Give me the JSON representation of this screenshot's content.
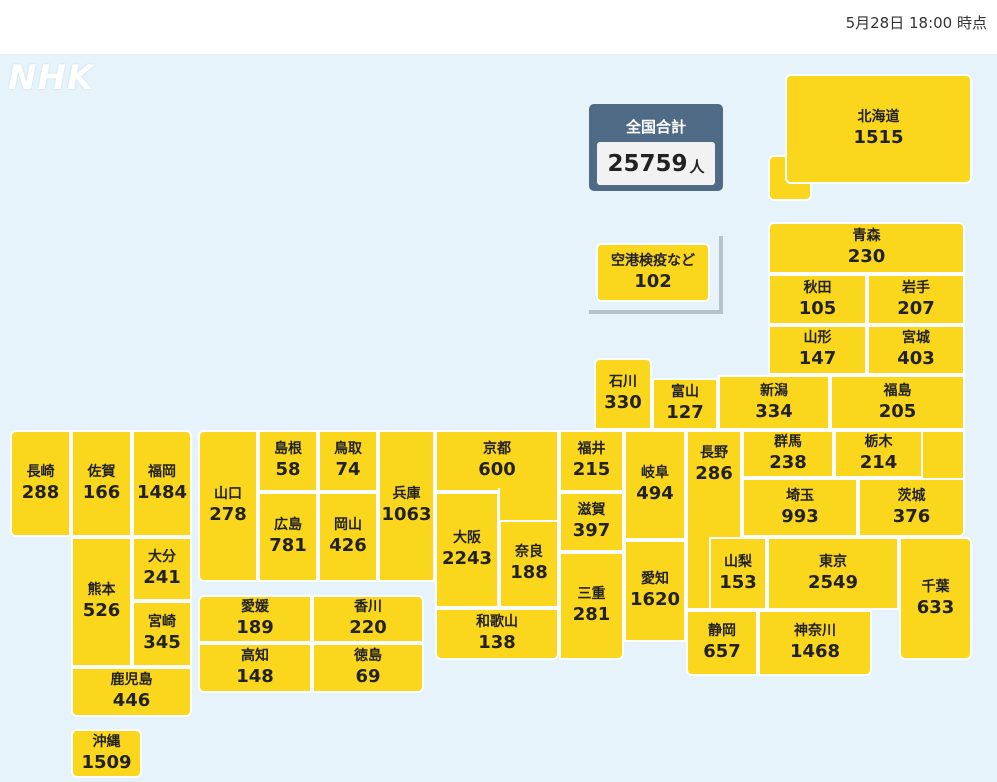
{
  "header": {
    "timestamp": "5月28日 18:00 時点"
  },
  "logo": {
    "text": "NHK"
  },
  "national": {
    "title": "全国合計",
    "count": "25759",
    "unit": "人"
  },
  "airport": {
    "name": "空港検疫など",
    "count": "102"
  },
  "colors": {
    "tile": "#fad61d",
    "background": "#e6f3fb",
    "total_panel": "#4f6b85"
  },
  "prefectures": {
    "hokkaido": {
      "name": "北海道",
      "count": "1515"
    },
    "aomori": {
      "name": "青森",
      "count": "230"
    },
    "akita": {
      "name": "秋田",
      "count": "105"
    },
    "iwate": {
      "name": "岩手",
      "count": "207"
    },
    "yamagata": {
      "name": "山形",
      "count": "147"
    },
    "miyagi": {
      "name": "宮城",
      "count": "403"
    },
    "ishikawa": {
      "name": "石川",
      "count": "330"
    },
    "toyama": {
      "name": "富山",
      "count": "127"
    },
    "niigata": {
      "name": "新潟",
      "count": "334"
    },
    "fukushima": {
      "name": "福島",
      "count": "205"
    },
    "nagasaki": {
      "name": "長崎",
      "count": "288"
    },
    "saga": {
      "name": "佐賀",
      "count": "166"
    },
    "fukuoka": {
      "name": "福岡",
      "count": "1484"
    },
    "yamaguchi": {
      "name": "山口",
      "count": "278"
    },
    "shimane": {
      "name": "島根",
      "count": "58"
    },
    "tottori": {
      "name": "鳥取",
      "count": "74"
    },
    "hyogo": {
      "name": "兵庫",
      "count": "1063"
    },
    "kyoto": {
      "name": "京都",
      "count": "600"
    },
    "fukui": {
      "name": "福井",
      "count": "215"
    },
    "gifu": {
      "name": "岐阜",
      "count": "494"
    },
    "nagano": {
      "name": "長野",
      "count": "286"
    },
    "gunma": {
      "name": "群馬",
      "count": "238"
    },
    "tochigi": {
      "name": "栃木",
      "count": "214"
    },
    "saitama": {
      "name": "埼玉",
      "count": "993"
    },
    "ibaraki": {
      "name": "茨城",
      "count": "376"
    },
    "hiroshima": {
      "name": "広島",
      "count": "781"
    },
    "okayama": {
      "name": "岡山",
      "count": "426"
    },
    "osaka": {
      "name": "大阪",
      "count": "2243"
    },
    "nara": {
      "name": "奈良",
      "count": "188"
    },
    "shiga": {
      "name": "滋賀",
      "count": "397"
    },
    "kumamoto": {
      "name": "熊本",
      "count": "526"
    },
    "oita": {
      "name": "大分",
      "count": "241"
    },
    "miyazaki": {
      "name": "宮崎",
      "count": "345"
    },
    "yamanashi": {
      "name": "山梨",
      "count": "153"
    },
    "tokyo": {
      "name": "東京",
      "count": "2549"
    },
    "chiba": {
      "name": "千葉",
      "count": "633"
    },
    "aichi": {
      "name": "愛知",
      "count": "1620"
    },
    "mie": {
      "name": "三重",
      "count": "281"
    },
    "ehime": {
      "name": "愛媛",
      "count": "189"
    },
    "kagawa": {
      "name": "香川",
      "count": "220"
    },
    "kochi": {
      "name": "高知",
      "count": "148"
    },
    "tokushima": {
      "name": "徳島",
      "count": "69"
    },
    "wakayama": {
      "name": "和歌山",
      "count": "138"
    },
    "shizuoka": {
      "name": "静岡",
      "count": "657"
    },
    "kanagawa": {
      "name": "神奈川",
      "count": "1468"
    },
    "kagoshima": {
      "name": "鹿児島",
      "count": "446"
    },
    "okinawa": {
      "name": "沖縄",
      "count": "1509"
    }
  }
}
